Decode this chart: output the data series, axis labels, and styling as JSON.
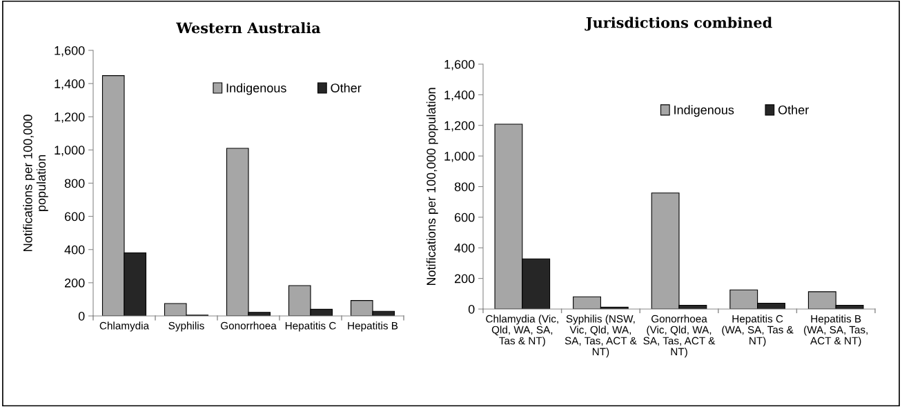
{
  "chart_data": [
    {
      "type": "bar",
      "title": "Western Australia",
      "ylabel": "Notifications per 100,000\npopulation",
      "categories": [
        "Chlamydia",
        "Syphilis",
        "Gonorrhoea",
        "Hepatitis C",
        "Hepatitis B"
      ],
      "series": [
        {
          "name": "Indigenous",
          "color": "#a6a6a6",
          "values": [
            1448,
            75,
            1010,
            183,
            93
          ]
        },
        {
          "name": "Other",
          "color": "#262626",
          "values": [
            380,
            5,
            22,
            40,
            28
          ]
        }
      ],
      "ylim": [
        0,
        1600
      ],
      "yticks": [
        {
          "value": 0,
          "label": "0"
        },
        {
          "value": 200,
          "label": "200"
        },
        {
          "value": 400,
          "label": "400"
        },
        {
          "value": 600,
          "label": "600"
        },
        {
          "value": 800,
          "label": "800"
        },
        {
          "value": 1000,
          "label": "1,000"
        },
        {
          "value": 1200,
          "label": "1,200"
        },
        {
          "value": 1400,
          "label": "1,400"
        },
        {
          "value": 1600,
          "label": "1,600"
        }
      ],
      "grid": false,
      "legend": "top right"
    },
    {
      "type": "bar",
      "title": "Jurisdictions combined",
      "ylabel": "Notifications per 100,000 population",
      "categories": [
        "Chlamydia (Vic,\nQld, WA, SA,\nTas & NT)",
        "Syphilis (NSW,\nVic, Qld, WA,\nSA, Tas, ACT &\nNT)",
        "Gonorrhoea\n(Vic, Qld, WA,\nSA, Tas, ACT &\nNT)",
        "Hepatitis C\n(WA, SA, Tas &\nNT)",
        "Hepatitis B\n(WA, SA, Tas,\nACT & NT)"
      ],
      "series": [
        {
          "name": "Indigenous",
          "color": "#a6a6a6",
          "values": [
            1208,
            80,
            758,
            125,
            113
          ]
        },
        {
          "name": "Other",
          "color": "#262626",
          "values": [
            328,
            12,
            25,
            38,
            25
          ]
        }
      ],
      "ylim": [
        0,
        1600
      ],
      "yticks": [
        {
          "value": 0,
          "label": "0"
        },
        {
          "value": 200,
          "label": "200"
        },
        {
          "value": 400,
          "label": "400"
        },
        {
          "value": 600,
          "label": "600"
        },
        {
          "value": 800,
          "label": "800"
        },
        {
          "value": 1000,
          "label": "1,000"
        },
        {
          "value": 1200,
          "label": "1,200"
        },
        {
          "value": 1400,
          "label": "1,400"
        },
        {
          "value": 1600,
          "label": "1,600"
        }
      ],
      "grid": false,
      "legend": "top right"
    }
  ]
}
